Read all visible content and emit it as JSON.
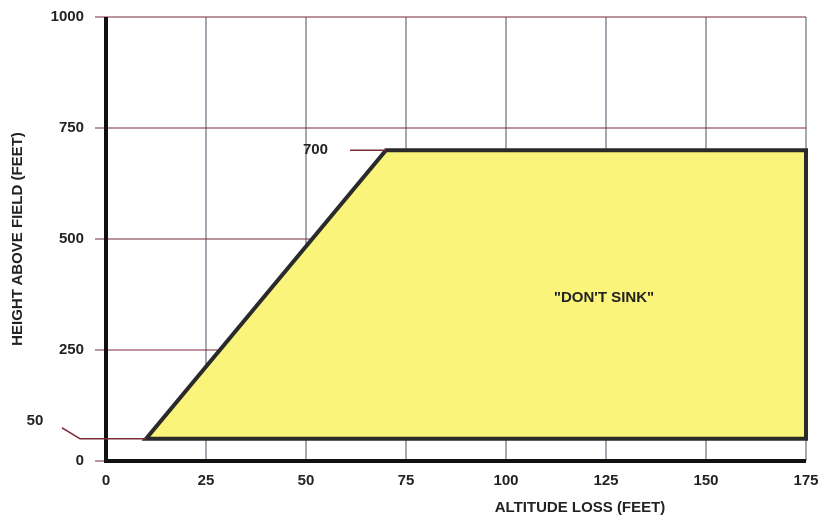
{
  "chart_data": {
    "type": "area",
    "x_label": "ALTITUDE LOSS (FEET)",
    "y_label": "HEIGHT ABOVE FIELD (FEET)",
    "x": [
      10,
      70,
      175,
      175
    ],
    "values": [
      50,
      700,
      700,
      50
    ],
    "color": "#fbf47a",
    "region_label": "\"DON'T SINK\"",
    "annotations": [
      700,
      50
    ],
    "xlim": [
      0,
      175
    ],
    "xticks": [
      0,
      25,
      50,
      75,
      100,
      125,
      150,
      175
    ],
    "ylim": [
      0,
      1000
    ],
    "yticks": [
      0,
      250,
      500,
      750,
      1000
    ],
    "grid": true
  }
}
